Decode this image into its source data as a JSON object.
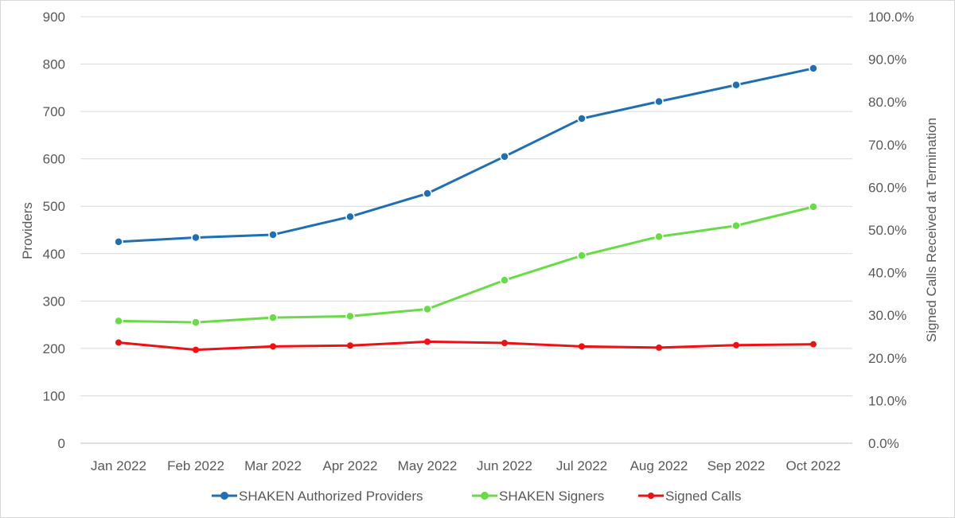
{
  "chart_data": {
    "type": "line",
    "categories": [
      "Jan 2022",
      "Feb 2022",
      "Mar 2022",
      "Apr 2022",
      "May 2022",
      "Jun 2022",
      "Jul 2022",
      "Aug 2022",
      "Sep 2022",
      "Oct 2022"
    ],
    "y_left": {
      "label": "Providers",
      "range": [
        0,
        900
      ],
      "ticks": [
        "0",
        "100",
        "200",
        "300",
        "400",
        "500",
        "600",
        "700",
        "800",
        "900"
      ]
    },
    "y_right": {
      "label": "Signed Calls Received at Termination",
      "range": [
        0,
        100
      ],
      "unit": "percent",
      "ticks": [
        "0.0%",
        "10.0%",
        "20.0%",
        "30.0%",
        "40.0%",
        "50.0%",
        "60.0%",
        "70.0%",
        "80.0%",
        "90.0%",
        "100.0%"
      ]
    },
    "grid": true,
    "legend_position": "bottom",
    "series": [
      {
        "name": "SHAKEN Authorized Providers",
        "axis": "left",
        "color": "#1f6fb5",
        "values": [
          425,
          434,
          440,
          478,
          527,
          605,
          685,
          721,
          756,
          791
        ]
      },
      {
        "name": "SHAKEN Signers",
        "axis": "left",
        "color": "#66dd44",
        "values": [
          258,
          255,
          265,
          268,
          283,
          344,
          396,
          436,
          459,
          499
        ]
      },
      {
        "name": "Signed Calls",
        "axis": "right",
        "color": "#ee1111",
        "values": [
          23.6,
          21.9,
          22.7,
          22.9,
          23.8,
          23.5,
          22.7,
          22.4,
          23.0,
          23.2
        ]
      }
    ]
  }
}
